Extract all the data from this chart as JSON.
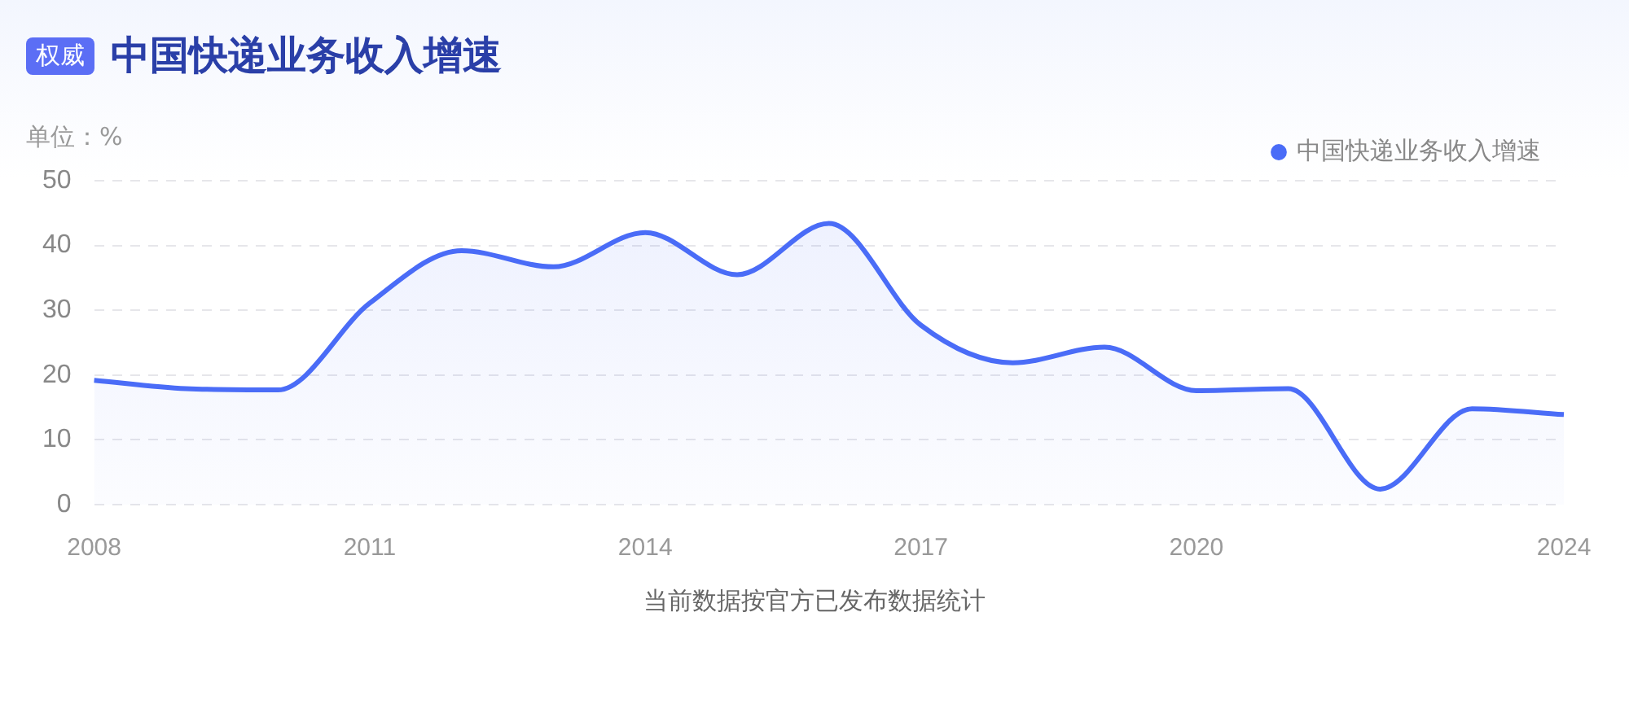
{
  "chart_data": {
    "type": "area",
    "title": "中国快递业务收入增速",
    "ylabel": "单位：%",
    "annotations": [
      "权威",
      "当前数据按官方已发布数据统计"
    ],
    "categories": [
      "2008",
      null,
      null,
      "2011",
      null,
      null,
      "2014",
      null,
      null,
      "2017",
      null,
      null,
      "2020",
      null,
      null,
      null,
      "2024"
    ],
    "series": [
      {
        "name": "中国快递业务收入增速",
        "color": "#4a6cf7",
        "values": [
          19.2,
          17.9,
          17.7,
          31.1,
          39.2,
          36.7,
          42.0,
          35.5,
          43.4,
          27.7,
          21.9,
          24.3,
          17.6,
          17.9,
          2.4,
          14.8,
          13.9
        ]
      }
    ],
    "ylim": [
      0,
      50
    ],
    "yticks": [
      0,
      10,
      20,
      30,
      40,
      50
    ],
    "grid": "y",
    "legend": "top right",
    "marker": "none",
    "line_style": "solid"
  }
}
